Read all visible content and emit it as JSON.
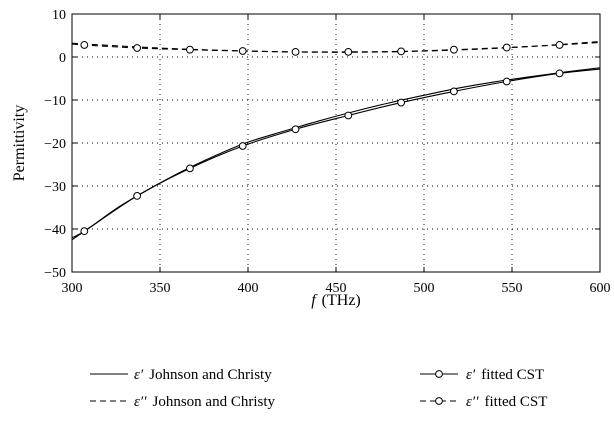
{
  "chart_data": {
    "type": "line",
    "xlabel_symbol": "f",
    "xlabel_unit": "(THz)",
    "ylabel": "Permittivity",
    "xlim": [
      300,
      600
    ],
    "ylim": [
      -50,
      10
    ],
    "x_ticks": [
      "300",
      "350",
      "400",
      "450",
      "500",
      "550",
      "600"
    ],
    "y_ticks": [
      "10",
      "0",
      "−10",
      "−20",
      "−30",
      "−40",
      "−50"
    ],
    "grid": true,
    "legend_position": "bottom",
    "series": [
      {
        "name": "ε′ Johnson and Christy",
        "style": "solid",
        "x": [
          300,
          310,
          325,
          340,
          355,
          370,
          385,
          400,
          420,
          440,
          460,
          480,
          500,
          520,
          540,
          560,
          580,
          600
        ],
        "y": [
          -42.5,
          -39.7,
          -35.3,
          -31.6,
          -28.2,
          -25.1,
          -22.3,
          -19.8,
          -17.3,
          -14.9,
          -12.7,
          -10.7,
          -8.9,
          -7.2,
          -5.8,
          -4.6,
          -3.5,
          -2.5
        ]
      },
      {
        "name": "ε′′ Johnson and Christy",
        "style": "dashed",
        "x": [
          300,
          330,
          360,
          390,
          420,
          450,
          480,
          510,
          540,
          570,
          600
        ],
        "y": [
          3.2,
          2.5,
          1.9,
          1.5,
          1.2,
          1.1,
          1.2,
          1.5,
          2.0,
          2.7,
          3.6
        ]
      },
      {
        "name": "ε′ fitted CST",
        "style": "solid-marker",
        "x": [
          300,
          307,
          337,
          367,
          397,
          427,
          457,
          487,
          517,
          547,
          577,
          600
        ],
        "y": [
          -42.0,
          -40.5,
          -32.3,
          -25.9,
          -20.7,
          -16.8,
          -13.6,
          -10.6,
          -8.0,
          -5.7,
          -3.8,
          -2.8
        ]
      },
      {
        "name": "ε′′ fitted CST",
        "style": "dashed-marker",
        "x": [
          300,
          307,
          337,
          367,
          397,
          427,
          457,
          487,
          517,
          547,
          577,
          600
        ],
        "y": [
          3.0,
          2.8,
          2.1,
          1.7,
          1.4,
          1.2,
          1.2,
          1.3,
          1.7,
          2.2,
          2.8,
          3.4
        ]
      }
    ],
    "marker_x": [
      307,
      337,
      367,
      397,
      427,
      457,
      487,
      517,
      547,
      577
    ]
  },
  "legend": {
    "eps1_symbol": "ε′",
    "eps2_symbol": "ε′′",
    "jc_label": "Johnson and Christy",
    "cst_label": "fitted CST"
  }
}
